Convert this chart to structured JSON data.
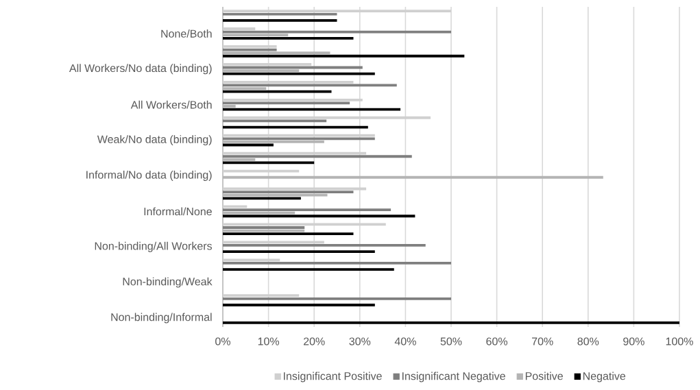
{
  "chart_data": {
    "type": "bar",
    "orientation": "horizontal",
    "categories": [
      null,
      "None/Both",
      null,
      "All Workers/No data (binding)",
      null,
      "All Workers/Both",
      null,
      "Weak/No data (binding)",
      null,
      "Informal/No data (binding)",
      null,
      "Informal/None",
      null,
      "Non-binding/All Workers",
      null,
      "Non-binding/Weak",
      null,
      "Non-binding/Informal"
    ],
    "series": [
      {
        "name": "Insignificant Positive",
        "color": "#d0d0d0",
        "values": [
          50,
          7.1,
          11.8,
          19.4,
          28.6,
          30.6,
          45.5,
          33.3,
          31.4,
          16.7,
          31.4,
          5.3,
          35.7,
          22.2,
          12.5,
          0,
          16.7,
          0
        ]
      },
      {
        "name": "Insignificant Negative",
        "color": "#7f7f7f",
        "values": [
          25,
          50,
          11.8,
          30.6,
          38.1,
          27.8,
          22.7,
          33.3,
          41.4,
          0,
          28.6,
          36.8,
          17.9,
          44.4,
          50,
          0,
          50,
          0
        ]
      },
      {
        "name": "Positive",
        "color": "#b4b4b4",
        "values": [
          0,
          14.3,
          23.5,
          16.7,
          9.5,
          2.8,
          0,
          22.2,
          7.1,
          83.3,
          22.9,
          15.8,
          17.9,
          0,
          0,
          0,
          0,
          0
        ]
      },
      {
        "name": "Negative",
        "color": "#000000",
        "values": [
          25,
          28.6,
          52.9,
          33.3,
          23.8,
          38.9,
          31.8,
          11.1,
          20,
          0,
          17.1,
          42.1,
          28.6,
          33.3,
          37.5,
          0,
          33.3,
          100
        ]
      }
    ],
    "xlim": [
      0,
      100
    ],
    "xticks": [
      {
        "value": 0,
        "label": "0%"
      },
      {
        "value": 10,
        "label": "10%"
      },
      {
        "value": 20,
        "label": "20%"
      },
      {
        "value": 30,
        "label": "30%"
      },
      {
        "value": 40,
        "label": "40%"
      },
      {
        "value": 50,
        "label": "50%"
      },
      {
        "value": 60,
        "label": "60%"
      },
      {
        "value": 70,
        "label": "70%"
      },
      {
        "value": 80,
        "label": "80%"
      },
      {
        "value": 90,
        "label": "90%"
      },
      {
        "value": 100,
        "label": "100%"
      }
    ],
    "grid": "x",
    "legend": "bottom"
  }
}
